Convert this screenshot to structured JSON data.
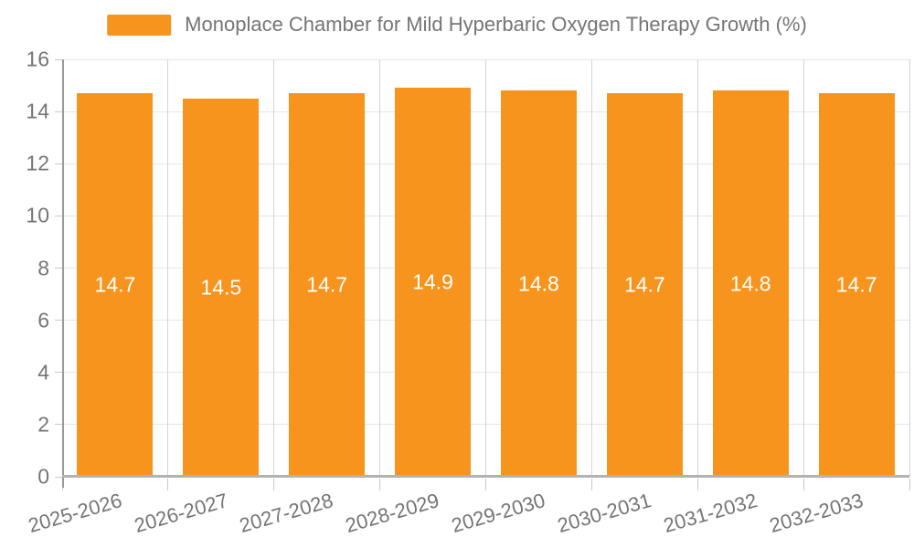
{
  "legend": {
    "label": "Monoplace Chamber for Mild Hyperbaric Oxygen Therapy Growth (%)",
    "swatch_color": "#F7941E"
  },
  "colors": {
    "bar": "#F7941E",
    "bar_value_text": "#FFFFFF",
    "axis_text": "#757575",
    "grid_horizontal": "#E6E6E6",
    "grid_vertical": "#D4D4D4",
    "axis_line": "#B2B2B2",
    "background": "#FFFFFF"
  },
  "chart_data": {
    "type": "bar",
    "title": "Monoplace Chamber for Mild Hyperbaric Oxygen Therapy Growth (%)",
    "categories": [
      "2025-2026",
      "2026-2027",
      "2027-2028",
      "2028-2029",
      "2029-2030",
      "2030-2031",
      "2031-2032",
      "2032-2033"
    ],
    "values": [
      14.7,
      14.5,
      14.7,
      14.9,
      14.8,
      14.7,
      14.8,
      14.7
    ],
    "value_labels": [
      "14.7",
      "14.5",
      "14.7",
      "14.9",
      "14.8",
      "14.7",
      "14.8",
      "14.7"
    ],
    "xlabel": "",
    "ylabel": "",
    "ylim": [
      0,
      16
    ],
    "yticks": [
      0,
      2,
      4,
      6,
      8,
      10,
      12,
      14,
      16
    ],
    "grid": true,
    "legend_position": "top-center",
    "bar_color": "#F7941E",
    "value_label_color": "#FFFFFF",
    "value_label_position": "inside-center",
    "x_label_rotation_deg": -16
  }
}
